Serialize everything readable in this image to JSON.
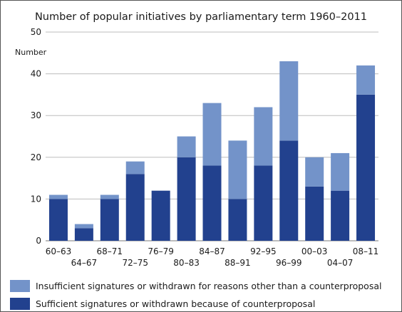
{
  "chart_data": {
    "type": "bar",
    "stacked": true,
    "title": "Number of popular initiatives by parliamentary term 1960–2011",
    "ylabel": "Number",
    "xlabel": "",
    "ylim": [
      0,
      50
    ],
    "yticks": [
      0,
      10,
      20,
      30,
      40,
      50
    ],
    "grid": true,
    "legend_position": "bottom",
    "categories": [
      "60–63",
      "64–67",
      "68–71",
      "72–75",
      "76–79",
      "80–83",
      "84–87",
      "88–91",
      "92–95",
      "96–99",
      "00–03",
      "04–07",
      "08–11"
    ],
    "series": [
      {
        "name": "Sufficient signatures or withdrawn because of counterproposal",
        "color": "#22418e",
        "values": [
          10,
          3,
          10,
          16,
          12,
          20,
          18,
          10,
          18,
          24,
          13,
          12,
          35
        ]
      },
      {
        "name": "Insufficient signatures or withdrawn for reasons other than a counterproposal",
        "color": "#7393c9",
        "values": [
          1,
          1,
          1,
          3,
          0,
          5,
          15,
          14,
          14,
          19,
          7,
          9,
          7
        ]
      }
    ]
  }
}
